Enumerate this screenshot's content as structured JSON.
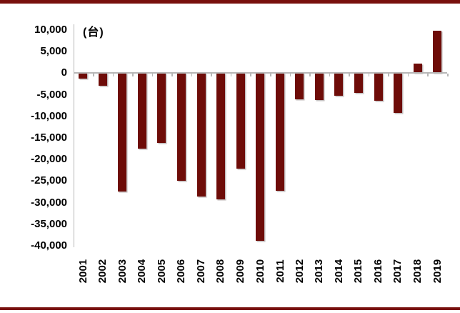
{
  "page": {
    "background": "#ffffff",
    "top_border_color": "#78100d",
    "bottom_border_color": "#78100d"
  },
  "chart_data": {
    "type": "bar",
    "title": "",
    "unit_label": "(台)",
    "categories": [
      "2001",
      "2002",
      "2003",
      "2004",
      "2005",
      "2006",
      "2007",
      "2008",
      "2009",
      "2010",
      "2011",
      "2012",
      "2013",
      "2014",
      "2015",
      "2016",
      "2017",
      "2018",
      "2019"
    ],
    "values": [
      -1300,
      -2900,
      -27500,
      -17500,
      -16100,
      -24900,
      -28500,
      -29300,
      -22100,
      -38900,
      -27200,
      -6000,
      -6300,
      -5300,
      -4600,
      -6400,
      -9200,
      2200,
      9900
    ],
    "y_ticks": [
      10000,
      5000,
      0,
      -5000,
      -10000,
      -15000,
      -20000,
      -25000,
      -30000,
      -35000,
      -40000
    ],
    "y_tick_labels": [
      "10,000",
      "5,000",
      "0",
      "-5,000",
      "-10,000",
      "-15,000",
      "-20,000",
      "-25,000",
      "-30,000",
      "-35,000",
      "-40,000"
    ],
    "ylim": [
      -40000,
      10000
    ],
    "xlabel": "",
    "ylabel": "",
    "grid": false,
    "legend": "none",
    "bar_color": "#6e0c08",
    "axis_color": "#b7b7b7",
    "text_color": "#000000"
  }
}
